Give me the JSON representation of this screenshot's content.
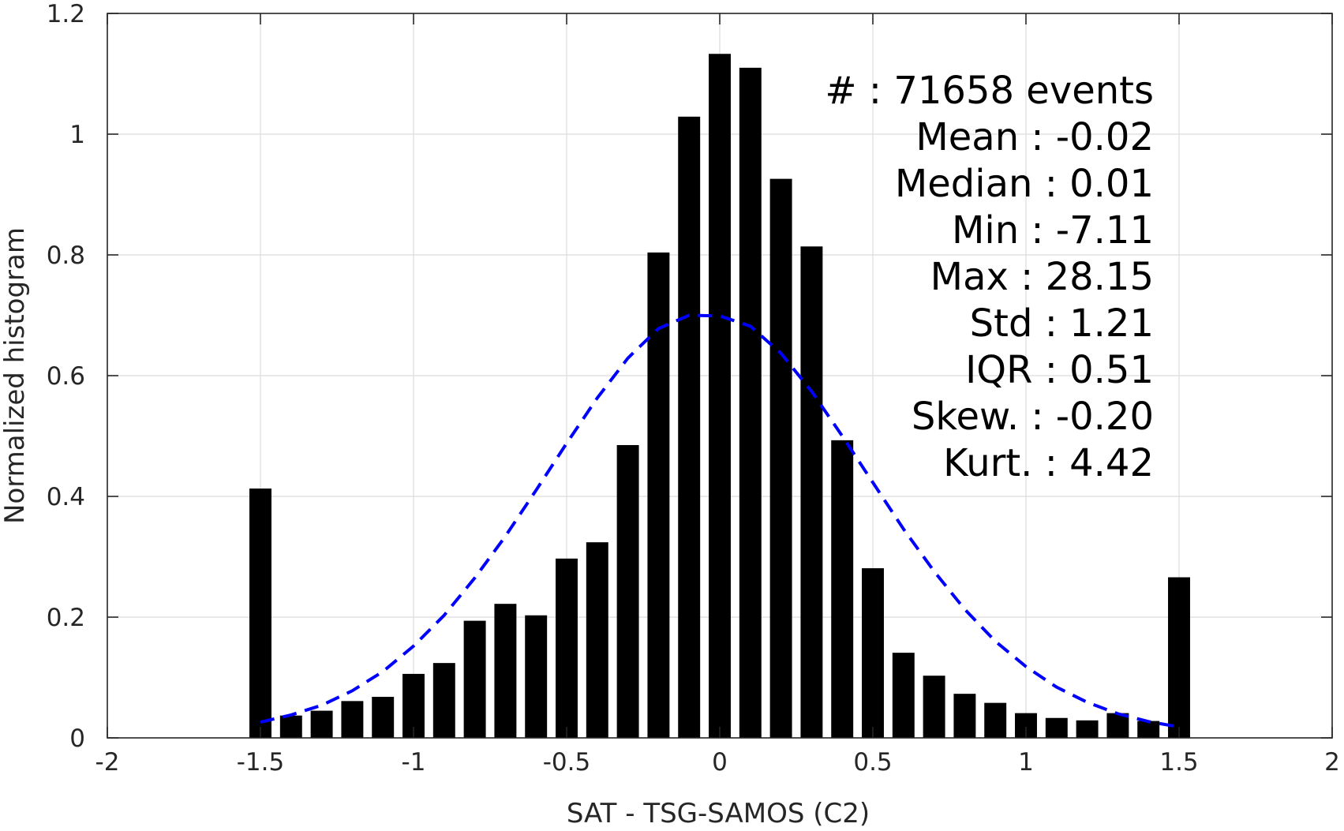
{
  "chart_data": {
    "type": "bar",
    "xlabel": "SAT - TSG-SAMOS (C2)",
    "ylabel": "Normalized histogram",
    "xlim": [
      -2,
      2
    ],
    "ylim": [
      0,
      1.2
    ],
    "xticks": [
      "-2",
      "-1.5",
      "-1",
      "-0.5",
      "0",
      "0.5",
      "1",
      "1.5",
      "2"
    ],
    "yticks": [
      "0",
      "0.2",
      "0.4",
      "0.6",
      "0.8",
      "1",
      "1.2"
    ],
    "grid": true,
    "bar_color": "#000000",
    "fit_color": "#0000ff",
    "bins": [
      {
        "x": -1.5,
        "y": 0.413
      },
      {
        "x": -1.4,
        "y": 0.037
      },
      {
        "x": -1.3,
        "y": 0.045
      },
      {
        "x": -1.2,
        "y": 0.061
      },
      {
        "x": -1.1,
        "y": 0.068
      },
      {
        "x": -1.0,
        "y": 0.106
      },
      {
        "x": -0.9,
        "y": 0.124
      },
      {
        "x": -0.8,
        "y": 0.194
      },
      {
        "x": -0.7,
        "y": 0.222
      },
      {
        "x": -0.6,
        "y": 0.203
      },
      {
        "x": -0.5,
        "y": 0.297
      },
      {
        "x": -0.4,
        "y": 0.324
      },
      {
        "x": -0.3,
        "y": 0.485
      },
      {
        "x": -0.2,
        "y": 0.804
      },
      {
        "x": -0.1,
        "y": 1.029
      },
      {
        "x": 0.0,
        "y": 1.133
      },
      {
        "x": 0.1,
        "y": 1.11
      },
      {
        "x": 0.2,
        "y": 0.926
      },
      {
        "x": 0.3,
        "y": 0.814
      },
      {
        "x": 0.4,
        "y": 0.493
      },
      {
        "x": 0.5,
        "y": 0.281
      },
      {
        "x": 0.6,
        "y": 0.141
      },
      {
        "x": 0.7,
        "y": 0.103
      },
      {
        "x": 0.8,
        "y": 0.073
      },
      {
        "x": 0.9,
        "y": 0.058
      },
      {
        "x": 1.0,
        "y": 0.041
      },
      {
        "x": 1.1,
        "y": 0.033
      },
      {
        "x": 1.2,
        "y": 0.029
      },
      {
        "x": 1.3,
        "y": 0.041
      },
      {
        "x": 1.4,
        "y": 0.028
      },
      {
        "x": 1.5,
        "y": 0.266
      }
    ],
    "fit_curve": {
      "style": "dashed",
      "points": [
        [
          -1.5,
          0.026
        ],
        [
          -1.4,
          0.038
        ],
        [
          -1.3,
          0.054
        ],
        [
          -1.2,
          0.078
        ],
        [
          -1.1,
          0.11
        ],
        [
          -1.0,
          0.152
        ],
        [
          -0.9,
          0.203
        ],
        [
          -0.8,
          0.265
        ],
        [
          -0.7,
          0.334
        ],
        [
          -0.6,
          0.41
        ],
        [
          -0.5,
          0.488
        ],
        [
          -0.4,
          0.563
        ],
        [
          -0.3,
          0.629
        ],
        [
          -0.2,
          0.678
        ],
        [
          -0.1,
          0.7
        ],
        [
          0.0,
          0.699
        ],
        [
          0.1,
          0.682
        ],
        [
          0.2,
          0.637
        ],
        [
          0.3,
          0.574
        ],
        [
          0.4,
          0.5
        ],
        [
          0.5,
          0.423
        ],
        [
          0.6,
          0.346
        ],
        [
          0.7,
          0.276
        ],
        [
          0.8,
          0.213
        ],
        [
          0.9,
          0.16
        ],
        [
          1.0,
          0.118
        ],
        [
          1.1,
          0.084
        ],
        [
          1.2,
          0.059
        ],
        [
          1.3,
          0.04
        ],
        [
          1.4,
          0.027
        ],
        [
          1.5,
          0.018
        ]
      ]
    },
    "stats": [
      "#  : 71658 events",
      "Mean : -0.02",
      "Median : 0.01",
      "Min : -7.11",
      "Max : 28.15",
      "Std : 1.21",
      "IQR : 0.51",
      "Skew. : -0.20",
      "Kurt. : 4.42"
    ]
  }
}
